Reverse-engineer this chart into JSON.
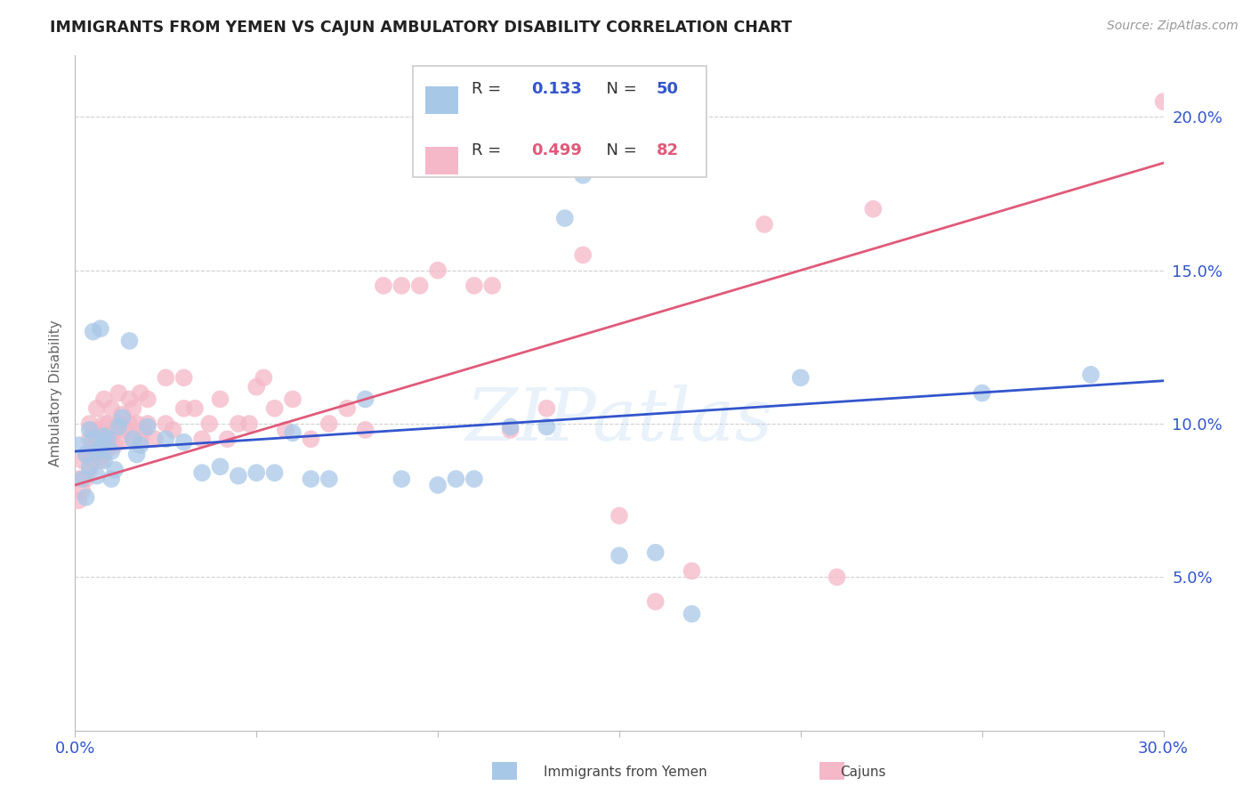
{
  "title": "IMMIGRANTS FROM YEMEN VS CAJUN AMBULATORY DISABILITY CORRELATION CHART",
  "source": "Source: ZipAtlas.com",
  "ylabel_label": "Ambulatory Disability",
  "x_min": 0.0,
  "x_max": 0.3,
  "y_min": 0.0,
  "y_max": 0.22,
  "x_ticks": [
    0.0,
    0.05,
    0.1,
    0.15,
    0.2,
    0.25,
    0.3
  ],
  "x_tick_labels": [
    "0.0%",
    "",
    "",
    "",
    "",
    "",
    "30.0%"
  ],
  "y_ticks": [
    0.0,
    0.05,
    0.1,
    0.15,
    0.2
  ],
  "y_tick_labels": [
    "",
    "5.0%",
    "10.0%",
    "15.0%",
    "20.0%"
  ],
  "color_blue": "#a8c8e8",
  "color_pink": "#f4b8c8",
  "trendline_blue": "#3355cc",
  "trendline_pink": "#e05a7a",
  "blue_scatter": [
    [
      0.001,
      0.093
    ],
    [
      0.002,
      0.082
    ],
    [
      0.003,
      0.09
    ],
    [
      0.003,
      0.076
    ],
    [
      0.004,
      0.098
    ],
    [
      0.004,
      0.086
    ],
    [
      0.005,
      0.13
    ],
    [
      0.005,
      0.095
    ],
    [
      0.006,
      0.091
    ],
    [
      0.006,
      0.083
    ],
    [
      0.007,
      0.131
    ],
    [
      0.007,
      0.092
    ],
    [
      0.008,
      0.088
    ],
    [
      0.008,
      0.096
    ],
    [
      0.009,
      0.095
    ],
    [
      0.01,
      0.091
    ],
    [
      0.01,
      0.082
    ],
    [
      0.011,
      0.085
    ],
    [
      0.012,
      0.099
    ],
    [
      0.013,
      0.102
    ],
    [
      0.015,
      0.127
    ],
    [
      0.016,
      0.095
    ],
    [
      0.017,
      0.09
    ],
    [
      0.018,
      0.093
    ],
    [
      0.02,
      0.099
    ],
    [
      0.025,
      0.095
    ],
    [
      0.03,
      0.094
    ],
    [
      0.035,
      0.084
    ],
    [
      0.04,
      0.086
    ],
    [
      0.045,
      0.083
    ],
    [
      0.05,
      0.084
    ],
    [
      0.055,
      0.084
    ],
    [
      0.06,
      0.097
    ],
    [
      0.065,
      0.082
    ],
    [
      0.07,
      0.082
    ],
    [
      0.08,
      0.108
    ],
    [
      0.09,
      0.082
    ],
    [
      0.1,
      0.08
    ],
    [
      0.105,
      0.082
    ],
    [
      0.11,
      0.082
    ],
    [
      0.12,
      0.099
    ],
    [
      0.13,
      0.099
    ],
    [
      0.135,
      0.167
    ],
    [
      0.14,
      0.181
    ],
    [
      0.15,
      0.057
    ],
    [
      0.16,
      0.058
    ],
    [
      0.17,
      0.038
    ],
    [
      0.2,
      0.115
    ],
    [
      0.25,
      0.11
    ],
    [
      0.28,
      0.116
    ]
  ],
  "pink_scatter": [
    [
      0.001,
      0.075
    ],
    [
      0.001,
      0.082
    ],
    [
      0.002,
      0.078
    ],
    [
      0.002,
      0.088
    ],
    [
      0.003,
      0.082
    ],
    [
      0.003,
      0.09
    ],
    [
      0.004,
      0.085
    ],
    [
      0.004,
      0.095
    ],
    [
      0.004,
      0.1
    ],
    [
      0.005,
      0.088
    ],
    [
      0.005,
      0.092
    ],
    [
      0.005,
      0.098
    ],
    [
      0.006,
      0.09
    ],
    [
      0.006,
      0.095
    ],
    [
      0.006,
      0.105
    ],
    [
      0.007,
      0.088
    ],
    [
      0.007,
      0.092
    ],
    [
      0.007,
      0.098
    ],
    [
      0.008,
      0.09
    ],
    [
      0.008,
      0.1
    ],
    [
      0.008,
      0.108
    ],
    [
      0.009,
      0.092
    ],
    [
      0.009,
      0.1
    ],
    [
      0.01,
      0.095
    ],
    [
      0.01,
      0.105
    ],
    [
      0.011,
      0.093
    ],
    [
      0.011,
      0.098
    ],
    [
      0.012,
      0.1
    ],
    [
      0.012,
      0.11
    ],
    [
      0.013,
      0.095
    ],
    [
      0.013,
      0.103
    ],
    [
      0.014,
      0.098
    ],
    [
      0.015,
      0.1
    ],
    [
      0.015,
      0.108
    ],
    [
      0.016,
      0.095
    ],
    [
      0.016,
      0.105
    ],
    [
      0.017,
      0.1
    ],
    [
      0.018,
      0.095
    ],
    [
      0.018,
      0.11
    ],
    [
      0.019,
      0.098
    ],
    [
      0.02,
      0.1
    ],
    [
      0.02,
      0.108
    ],
    [
      0.022,
      0.095
    ],
    [
      0.025,
      0.1
    ],
    [
      0.025,
      0.115
    ],
    [
      0.027,
      0.098
    ],
    [
      0.03,
      0.105
    ],
    [
      0.03,
      0.115
    ],
    [
      0.033,
      0.105
    ],
    [
      0.035,
      0.095
    ],
    [
      0.037,
      0.1
    ],
    [
      0.04,
      0.108
    ],
    [
      0.042,
      0.095
    ],
    [
      0.045,
      0.1
    ],
    [
      0.048,
      0.1
    ],
    [
      0.05,
      0.112
    ],
    [
      0.052,
      0.115
    ],
    [
      0.055,
      0.105
    ],
    [
      0.058,
      0.098
    ],
    [
      0.06,
      0.108
    ],
    [
      0.065,
      0.095
    ],
    [
      0.07,
      0.1
    ],
    [
      0.075,
      0.105
    ],
    [
      0.08,
      0.098
    ],
    [
      0.085,
      0.145
    ],
    [
      0.09,
      0.145
    ],
    [
      0.095,
      0.145
    ],
    [
      0.1,
      0.15
    ],
    [
      0.11,
      0.145
    ],
    [
      0.115,
      0.145
    ],
    [
      0.12,
      0.098
    ],
    [
      0.13,
      0.105
    ],
    [
      0.14,
      0.155
    ],
    [
      0.15,
      0.07
    ],
    [
      0.16,
      0.042
    ],
    [
      0.17,
      0.052
    ],
    [
      0.19,
      0.165
    ],
    [
      0.21,
      0.05
    ],
    [
      0.22,
      0.17
    ],
    [
      0.3,
      0.205
    ]
  ],
  "blue_line_x": [
    0.0,
    0.3
  ],
  "blue_line_y": [
    0.091,
    0.114
  ],
  "pink_line_x": [
    0.0,
    0.3
  ],
  "pink_line_y": [
    0.08,
    0.185
  ],
  "watermark": "ZIPatlas",
  "background_color": "#ffffff",
  "grid_color": "#d0d0d0",
  "title_color": "#222222",
  "source_color": "#999999",
  "tick_color": "#3355cc",
  "ylabel_color": "#666666",
  "legend_text_color": "#333333",
  "legend_val_color": "#3355cc",
  "legend_pink_val_color": "#e05a7a"
}
